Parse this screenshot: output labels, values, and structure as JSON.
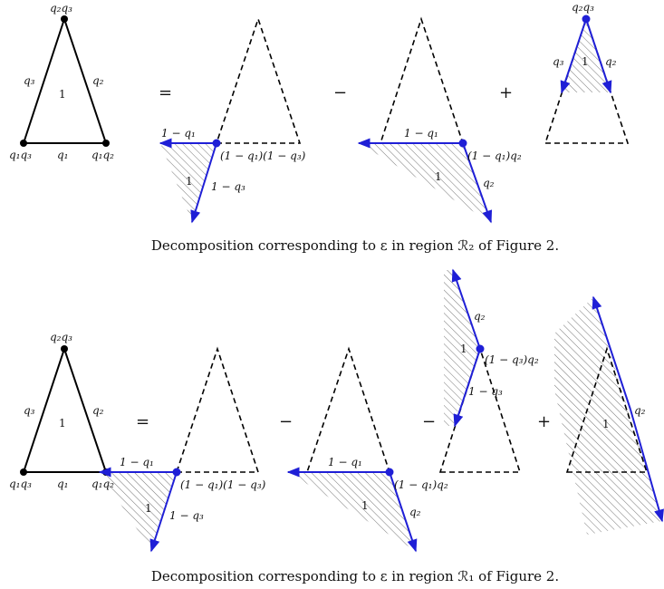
{
  "captions": {
    "top": "Decomposition corresponding to ε in region ℛ₂ of Figure 2.",
    "bottom": "Decomposition corresponding to ε in region ℛ₁ of Figure 2."
  },
  "operators": {
    "equals": "=",
    "minus": "−",
    "plus": "+"
  },
  "labels": {
    "q1": "q₁",
    "q2": "q₂",
    "q3": "q₃",
    "q1q2": "q₁q₂",
    "q1q3": "q₁q₃",
    "q2q3": "q₂q₃",
    "one": "1",
    "one_minus_q1": "1 − q₁",
    "one_minus_q3": "1 − q₃",
    "prod_1mq1_1mq3": "(1 − q₁)(1 − q₃)",
    "prod_1mq1_q2": "(1 − q₁)q₂",
    "prod_1mq3_q2": "(1 − q₃)q₂"
  },
  "colors": {
    "ray": "#1f1fd6",
    "hatch": "#777777",
    "edge": "#000000"
  }
}
